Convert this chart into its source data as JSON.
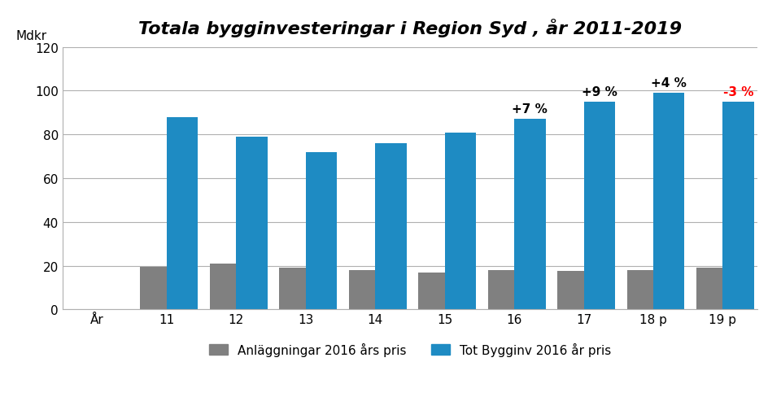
{
  "title": "Totala bygginvesteringar i Region Syd , år 2011-2019",
  "ylabel": "Mdkr",
  "xlabel": "År",
  "categories": [
    "År",
    "11",
    "12",
    "13",
    "14",
    "15",
    "16",
    "17",
    "18 p",
    "19 p"
  ],
  "gray_values": [
    0,
    19.5,
    21.0,
    19.0,
    18.0,
    17.0,
    18.0,
    17.5,
    18.0,
    19.0
  ],
  "blue_values": [
    0,
    88.0,
    79.0,
    72.0,
    76.0,
    81.0,
    87.0,
    95.0,
    99.0,
    95.0
  ],
  "annotations": [
    {
      "index": 6,
      "text": "+7 %",
      "color": "#000000"
    },
    {
      "index": 7,
      "text": "+9 %",
      "color": "#000000"
    },
    {
      "index": 8,
      "text": "+4 %",
      "color": "#000000"
    },
    {
      "index": 9,
      "text": "-3 %",
      "color": "#ff0000"
    }
  ],
  "gray_bar_width": 0.38,
  "blue_bar_width": 0.45,
  "gray_color": "#808080",
  "blue_color": "#1e8bc3",
  "ylim": [
    0,
    120
  ],
  "yticks": [
    0,
    20,
    40,
    60,
    80,
    100,
    120
  ],
  "legend_gray": "Anläggningar 2016 års pris",
  "legend_blue": "Tot Bygginv 2016 år pris",
  "background_color": "#ffffff",
  "grid_color": "#b0b0b0",
  "title_fontsize": 16,
  "axis_fontsize": 11,
  "annotation_fontsize": 11,
  "tick_fontsize": 11
}
